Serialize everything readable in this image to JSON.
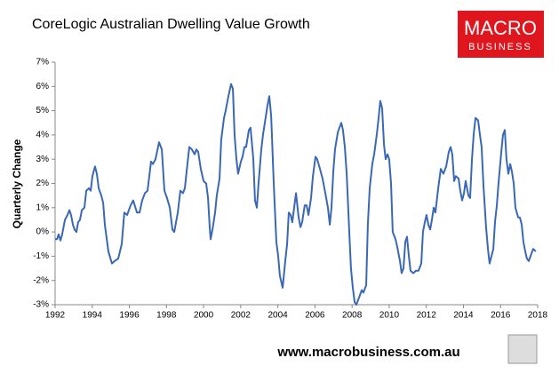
{
  "chart_data": {
    "type": "line",
    "title": "CoreLogic Australian Dwelling Value Growth",
    "ylabel": "Quarterly Change",
    "source": "www.macrobusiness.com.au",
    "logo": [
      "MACRO",
      "BUSINESS"
    ],
    "color": "#3a68b5",
    "xlim": [
      1992,
      2018
    ],
    "xticks": [
      1992,
      1994,
      1996,
      1998,
      2000,
      2002,
      2004,
      2006,
      2008,
      2010,
      2012,
      2014,
      2016,
      2018
    ],
    "ylim": [
      -3,
      7
    ],
    "yticks": [
      {
        "value": -3,
        "label": "-3%"
      },
      {
        "value": -2,
        "label": "-2%"
      },
      {
        "value": -1,
        "label": "-1%"
      },
      {
        "value": 0,
        "label": "0%"
      },
      {
        "value": 1,
        "label": "1%"
      },
      {
        "value": 2,
        "label": "2%"
      },
      {
        "value": 3,
        "label": "3%"
      },
      {
        "value": 4,
        "label": "4%"
      },
      {
        "value": 5,
        "label": "5%"
      },
      {
        "value": 6,
        "label": "6%"
      },
      {
        "value": 7,
        "label": "7%"
      }
    ],
    "x": [
      1992.0,
      1992.1,
      1992.19,
      1992.29,
      1992.38,
      1992.53,
      1992.67,
      1992.77,
      1992.86,
      1992.96,
      1993.05,
      1993.15,
      1993.24,
      1993.34,
      1993.44,
      1993.58,
      1993.68,
      1993.82,
      1993.92,
      1994.01,
      1994.15,
      1994.25,
      1994.35,
      1994.49,
      1994.59,
      1994.68,
      1994.87,
      1995.06,
      1995.21,
      1995.4,
      1995.59,
      1995.73,
      1995.88,
      1996.07,
      1996.21,
      1996.41,
      1996.55,
      1996.69,
      1996.84,
      1996.98,
      1997.17,
      1997.27,
      1997.41,
      1997.6,
      1997.75,
      1997.89,
      1998.03,
      1998.18,
      1998.32,
      1998.42,
      1998.61,
      1998.75,
      1998.89,
      1998.99,
      1999.13,
      1999.23,
      1999.37,
      1999.52,
      1999.61,
      1999.71,
      1999.85,
      2000.0,
      2000.14,
      2000.24,
      2000.33,
      2000.38,
      2000.48,
      2000.62,
      2000.71,
      2000.86,
      2000.95,
      2001.1,
      2001.19,
      2001.34,
      2001.48,
      2001.58,
      2001.67,
      2001.77,
      2001.86,
      2002.01,
      2002.1,
      2002.2,
      2002.29,
      2002.44,
      2002.53,
      2002.68,
      2002.77,
      2002.87,
      2002.96,
      2003.11,
      2003.2,
      2003.3,
      2003.44,
      2003.54,
      2003.64,
      2003.78,
      2003.92,
      2004.02,
      2004.11,
      2004.26,
      2004.4,
      2004.5,
      2004.59,
      2004.69,
      2004.78,
      2004.88,
      2004.98,
      2005.12,
      2005.22,
      2005.31,
      2005.45,
      2005.55,
      2005.65,
      2005.79,
      2005.89,
      2006.03,
      2006.12,
      2006.27,
      2006.41,
      2006.56,
      2006.7,
      2006.8,
      2006.89,
      2006.99,
      2007.08,
      2007.23,
      2007.32,
      2007.42,
      2007.51,
      2007.61,
      2007.71,
      2007.85,
      2007.94,
      2008.04,
      2008.14,
      2008.23,
      2008.38,
      2008.52,
      2008.61,
      2008.76,
      2008.85,
      2008.95,
      2009.09,
      2009.19,
      2009.33,
      2009.43,
      2009.52,
      2009.62,
      2009.72,
      2009.81,
      2009.91,
      2010.0,
      2010.1,
      2010.19,
      2010.34,
      2010.43,
      2010.58,
      2010.67,
      2010.77,
      2010.87,
      2010.96,
      2011.06,
      2011.15,
      2011.3,
      2011.44,
      2011.58,
      2011.73,
      2011.82,
      2011.92,
      2012.01,
      2012.11,
      2012.21,
      2012.3,
      2012.4,
      2012.49,
      2012.64,
      2012.78,
      2012.92,
      2013.07,
      2013.21,
      2013.31,
      2013.4,
      2013.5,
      2013.59,
      2013.74,
      2013.83,
      2013.93,
      2014.03,
      2014.12,
      2014.27,
      2014.36,
      2014.46,
      2014.55,
      2014.65,
      2014.79,
      2014.89,
      2014.98,
      2015.08,
      2015.22,
      2015.32,
      2015.41,
      2015.51,
      2015.61,
      2015.7,
      2015.8,
      2015.89,
      2016.04,
      2016.13,
      2016.23,
      2016.32,
      2016.42,
      2016.52,
      2016.61,
      2016.71,
      2016.8,
      2016.95,
      2017.04,
      2017.14,
      2017.23,
      2017.33,
      2017.42,
      2017.52,
      2017.66,
      2017.76,
      2017.9
    ],
    "values": [
      -0.3,
      -0.3,
      -0.1,
      -0.35,
      -0.1,
      0.5,
      0.7,
      0.9,
      0.7,
      0.3,
      0.1,
      0.0,
      0.4,
      0.5,
      0.9,
      1.0,
      1.7,
      1.8,
      1.7,
      2.3,
      2.7,
      2.4,
      1.8,
      1.5,
      1.2,
      0.3,
      -0.8,
      -1.3,
      -1.2,
      -1.1,
      -0.5,
      0.8,
      0.7,
      1.1,
      1.3,
      0.8,
      0.8,
      1.3,
      1.6,
      1.7,
      2.9,
      2.8,
      3.0,
      3.7,
      3.4,
      1.7,
      1.4,
      1.0,
      0.1,
      0.0,
      0.8,
      1.7,
      1.6,
      1.8,
      2.8,
      3.5,
      3.4,
      3.2,
      3.4,
      3.3,
      2.6,
      2.1,
      2.0,
      1.4,
      0.2,
      -0.3,
      0.1,
      0.8,
      1.5,
      2.2,
      3.8,
      4.7,
      5.0,
      5.6,
      6.1,
      5.9,
      4.0,
      3.0,
      2.4,
      2.9,
      3.1,
      3.5,
      3.5,
      4.2,
      4.3,
      3.0,
      1.3,
      1.0,
      2.0,
      3.4,
      4.0,
      4.5,
      5.2,
      5.6,
      4.8,
      2.0,
      -0.4,
      -1.0,
      -1.8,
      -2.3,
      -1.2,
      -0.5,
      0.8,
      0.7,
      0.4,
      1.0,
      1.6,
      0.6,
      0.2,
      0.4,
      1.1,
      1.1,
      0.7,
      1.4,
      2.3,
      3.1,
      3.0,
      2.6,
      2.2,
      1.6,
      1.0,
      0.3,
      1.0,
      2.5,
      3.4,
      4.1,
      4.3,
      4.5,
      4.2,
      3.5,
      2.4,
      0.0,
      -1.5,
      -2.3,
      -2.9,
      -3.0,
      -2.7,
      -2.4,
      -2.5,
      -2.2,
      0.3,
      1.8,
      2.8,
      3.2,
      4.0,
      4.7,
      5.4,
      5.1,
      3.6,
      3.0,
      3.2,
      3.0,
      2.0,
      0.0,
      -0.3,
      -0.6,
      -1.2,
      -1.7,
      -1.5,
      -0.4,
      -0.2,
      -1.0,
      -1.6,
      -1.7,
      -1.6,
      -1.6,
      -1.3,
      0.0,
      0.4,
      0.7,
      0.3,
      0.1,
      0.5,
      1.0,
      0.8,
      1.8,
      2.6,
      2.4,
      2.7,
      3.3,
      3.5,
      3.2,
      2.1,
      2.3,
      2.2,
      1.7,
      1.3,
      1.6,
      2.1,
      1.5,
      1.4,
      3.0,
      4.0,
      4.7,
      4.6,
      4.0,
      3.5,
      1.9,
      0.2,
      -0.7,
      -1.3,
      -1.0,
      -0.7,
      0.4,
      1.1,
      2.0,
      3.3,
      4.0,
      4.2,
      3.0,
      2.4,
      2.8,
      2.5,
      2.0,
      1.0,
      0.6,
      0.6,
      0.3,
      -0.4,
      -0.8,
      -1.1,
      -1.2,
      -0.9,
      -0.7,
      -0.8
    ]
  }
}
